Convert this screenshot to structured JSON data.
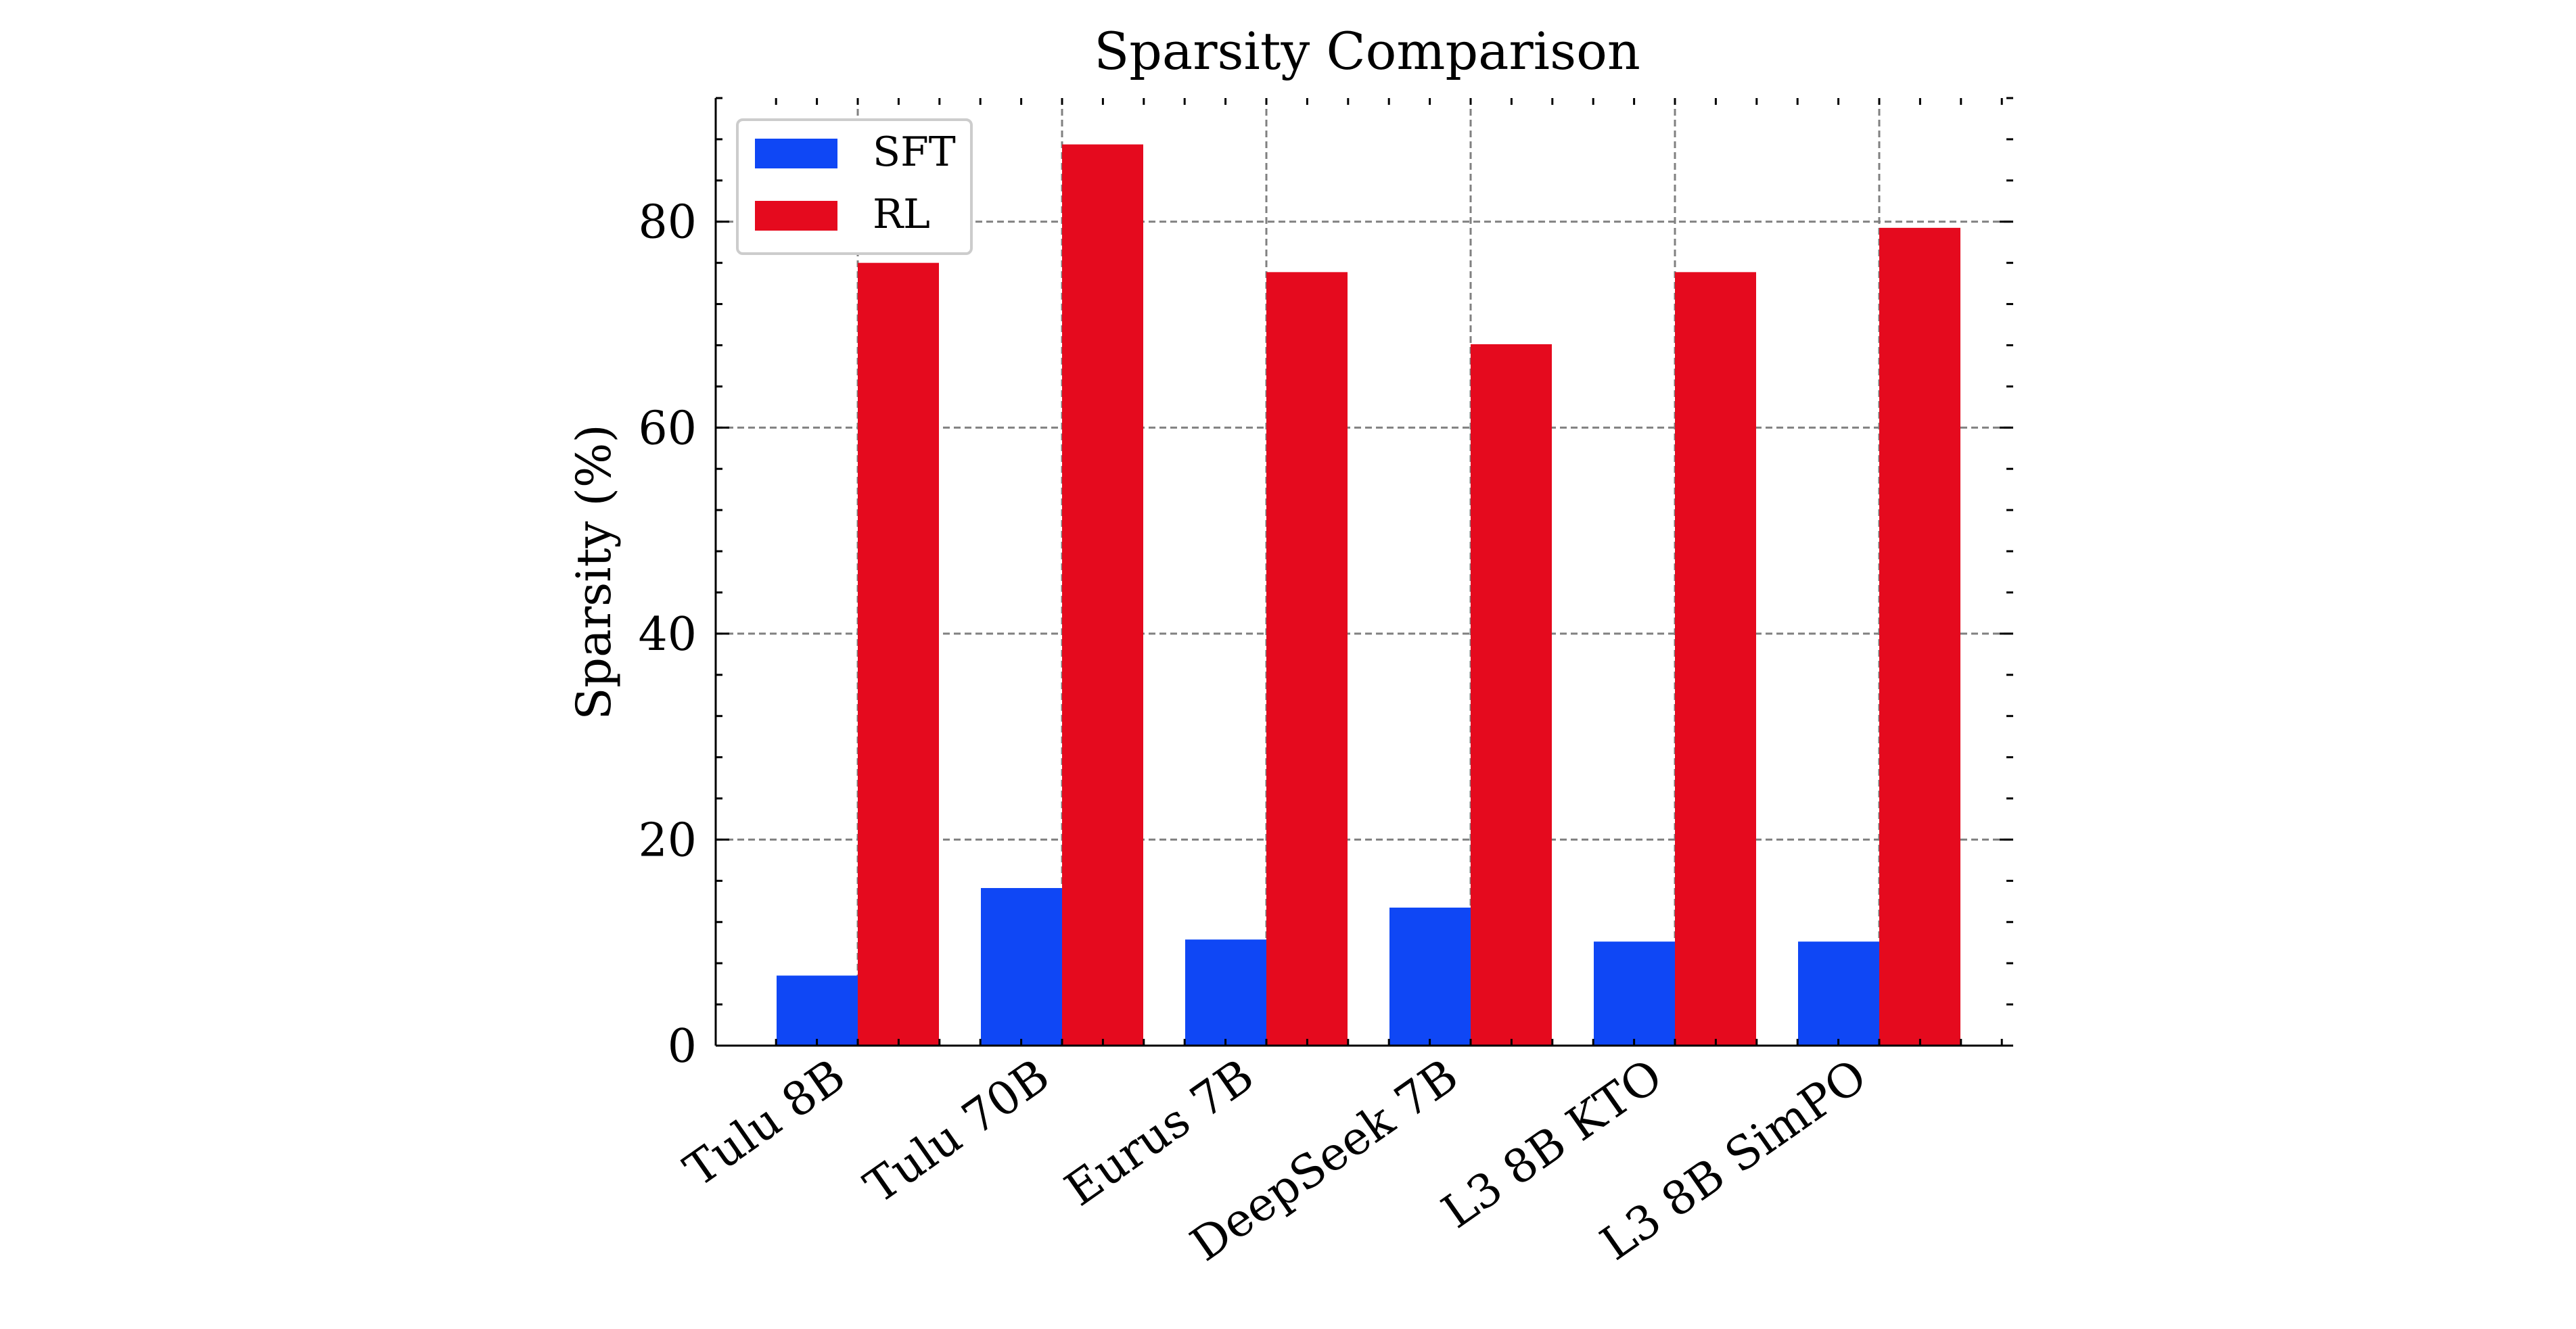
{
  "chart_data": {
    "type": "bar",
    "title": "Sparsity Comparison",
    "xlabel": "",
    "ylabel": "Sparsity (%)",
    "categories": [
      "Tulu 8B",
      "Tulu 70B",
      "Eurus 7B",
      "DeepSeek 7B",
      "L3 8B KTO",
      "L3 8B SimPO"
    ],
    "series": [
      {
        "name": "SFT",
        "color": "#0f47f5",
        "values": [
          6.8,
          15.3,
          10.3,
          13.4,
          10.1,
          10.1
        ]
      },
      {
        "name": "RL",
        "color": "#e50a1e",
        "values": [
          76.0,
          87.5,
          75.1,
          68.1,
          75.1,
          79.4
        ]
      }
    ],
    "ylim": [
      0,
      92
    ],
    "yticks": [
      0,
      20,
      40,
      60,
      80
    ],
    "grid": true,
    "legend_position": "top-left"
  }
}
